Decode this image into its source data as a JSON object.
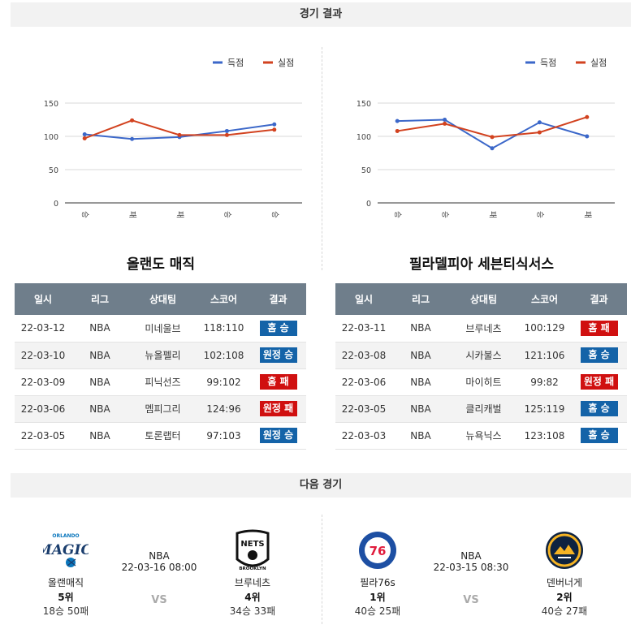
{
  "sections": {
    "results_title": "경기 결과",
    "next_title": "다음 경기"
  },
  "legend": {
    "scored": "득점",
    "conceded": "실점"
  },
  "colors": {
    "scored": "#3b67c9",
    "conceded": "#d2421f",
    "win": "#1463a8",
    "loss": "#d01010"
  },
  "chart_data": [
    {
      "type": "line",
      "categories": [
        "승",
        "패",
        "패",
        "승",
        "승"
      ],
      "ylim": [
        0,
        150
      ],
      "yticks": [
        0,
        50,
        100,
        150
      ],
      "series": [
        {
          "name": "득점",
          "values": [
            103,
            96,
            99,
            108,
            118
          ]
        },
        {
          "name": "실점",
          "values": [
            97,
            124,
            102,
            102,
            110
          ]
        }
      ],
      "grid": true,
      "legend_position": "top-right"
    },
    {
      "type": "line",
      "categories": [
        "승",
        "승",
        "패",
        "승",
        "패"
      ],
      "ylim": [
        0,
        150
      ],
      "yticks": [
        0,
        50,
        100,
        150
      ],
      "series": [
        {
          "name": "득점",
          "values": [
            123,
            125,
            82,
            121,
            100
          ]
        },
        {
          "name": "실점",
          "values": [
            108,
            119,
            99,
            106,
            129
          ]
        }
      ],
      "grid": true,
      "legend_position": "top-right"
    }
  ],
  "headers": [
    "일시",
    "리그",
    "상대팀",
    "스코어",
    "결과"
  ],
  "teams": [
    {
      "title": "올랜도 매직",
      "games": [
        {
          "date": "22-03-12",
          "league": "NBA",
          "opponent": "미네울브",
          "score": "118:110",
          "result": "홈 승",
          "win": true
        },
        {
          "date": "22-03-10",
          "league": "NBA",
          "opponent": "뉴올펠리",
          "score": "102:108",
          "result": "원정 승",
          "win": true
        },
        {
          "date": "22-03-09",
          "league": "NBA",
          "opponent": "피닉선즈",
          "score": "99:102",
          "result": "홈 패",
          "win": false
        },
        {
          "date": "22-03-06",
          "league": "NBA",
          "opponent": "멤피그리",
          "score": "124:96",
          "result": "원정 패",
          "win": false
        },
        {
          "date": "22-03-05",
          "league": "NBA",
          "opponent": "토론랩터",
          "score": "97:103",
          "result": "원정 승",
          "win": true
        }
      ]
    },
    {
      "title": "필라델피아 세븐티식서스",
      "games": [
        {
          "date": "22-03-11",
          "league": "NBA",
          "opponent": "브루네츠",
          "score": "100:129",
          "result": "홈 패",
          "win": false
        },
        {
          "date": "22-03-08",
          "league": "NBA",
          "opponent": "시카불스",
          "score": "121:106",
          "result": "홈 승",
          "win": true
        },
        {
          "date": "22-03-06",
          "league": "NBA",
          "opponent": "마이히트",
          "score": "99:82",
          "result": "원정 패",
          "win": false
        },
        {
          "date": "22-03-05",
          "league": "NBA",
          "opponent": "클리캐벌",
          "score": "125:119",
          "result": "홈 승",
          "win": true
        },
        {
          "date": "22-03-03",
          "league": "NBA",
          "opponent": "뉴욕닉스",
          "score": "123:108",
          "result": "홈 승",
          "win": true
        }
      ]
    }
  ],
  "matches": [
    {
      "league": "NBA",
      "datetime": "22-03-16 08:00",
      "vs": "VS",
      "home": {
        "name": "올랜매직",
        "rank": "5위",
        "record": "18승 50패",
        "logo_text": "MAGIC",
        "logo_top": "ORLANDO",
        "logo_icon": "orlando-magic-logo"
      },
      "away": {
        "name": "브루네츠",
        "rank": "4위",
        "record": "34승 33패",
        "logo_text": "NETS",
        "logo_bottom": "BROOKLYN",
        "logo_icon": "brooklyn-nets-logo"
      }
    },
    {
      "league": "NBA",
      "datetime": "22-03-15 08:30",
      "vs": "VS",
      "home": {
        "name": "필라76s",
        "rank": "1위",
        "record": "40승 25패",
        "logo_text": "76",
        "logo_icon": "philadelphia-76ers-logo"
      },
      "away": {
        "name": "덴버너게",
        "rank": "2위",
        "record": "40승 27패",
        "logo_icon": "denver-nuggets-logo"
      }
    }
  ]
}
